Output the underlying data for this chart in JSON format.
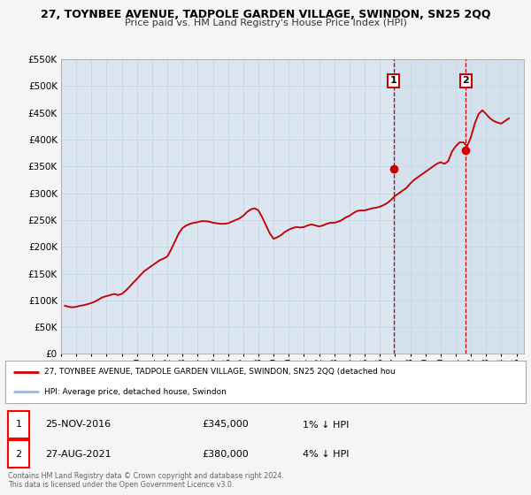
{
  "title": "27, TOYNBEE AVENUE, TADPOLE GARDEN VILLAGE, SWINDON, SN25 2QQ",
  "subtitle": "Price paid vs. HM Land Registry's House Price Index (HPI)",
  "ylim": [
    0,
    550000
  ],
  "yticks": [
    0,
    50000,
    100000,
    150000,
    200000,
    250000,
    300000,
    350000,
    400000,
    450000,
    500000,
    550000
  ],
  "xlim_start": 1995.0,
  "xlim_end": 2025.5,
  "background_color": "#f5f5f5",
  "plot_bg_color": "#dce6f1",
  "grid_color": "#c8d8e8",
  "red_line_color": "#cc0000",
  "blue_line_color": "#99bbdd",
  "marker1_date": 2016.9,
  "marker1_value": 345000,
  "marker2_date": 2021.65,
  "marker2_value": 380000,
  "vline1_x": 2016.9,
  "vline2_x": 2021.65,
  "legend_label_red": "27, TOYNBEE AVENUE, TADPOLE GARDEN VILLAGE, SWINDON, SN25 2QQ (detached hou",
  "legend_label_blue": "HPI: Average price, detached house, Swindon",
  "table_row1": [
    "1",
    "25-NOV-2016",
    "£345,000",
    "1% ↓ HPI"
  ],
  "table_row2": [
    "2",
    "27-AUG-2021",
    "£380,000",
    "4% ↓ HPI"
  ],
  "footer1": "Contains HM Land Registry data © Crown copyright and database right 2024.",
  "footer2": "This data is licensed under the Open Government Licence v3.0.",
  "hpi_years": [
    1995.25,
    1995.5,
    1995.75,
    1996.0,
    1996.25,
    1996.5,
    1996.75,
    1997.0,
    1997.25,
    1997.5,
    1997.75,
    1998.0,
    1998.25,
    1998.5,
    1998.75,
    1999.0,
    1999.25,
    1999.5,
    1999.75,
    2000.0,
    2000.25,
    2000.5,
    2000.75,
    2001.0,
    2001.25,
    2001.5,
    2001.75,
    2002.0,
    2002.25,
    2002.5,
    2002.75,
    2003.0,
    2003.25,
    2003.5,
    2003.75,
    2004.0,
    2004.25,
    2004.5,
    2004.75,
    2005.0,
    2005.25,
    2005.5,
    2005.75,
    2006.0,
    2006.25,
    2006.5,
    2006.75,
    2007.0,
    2007.25,
    2007.5,
    2007.75,
    2008.0,
    2008.25,
    2008.5,
    2008.75,
    2009.0,
    2009.25,
    2009.5,
    2009.75,
    2010.0,
    2010.25,
    2010.5,
    2010.75,
    2011.0,
    2011.25,
    2011.5,
    2011.75,
    2012.0,
    2012.25,
    2012.5,
    2012.75,
    2013.0,
    2013.25,
    2013.5,
    2013.75,
    2014.0,
    2014.25,
    2014.5,
    2014.75,
    2015.0,
    2015.25,
    2015.5,
    2015.75,
    2016.0,
    2016.25,
    2016.5,
    2016.75,
    2017.0,
    2017.25,
    2017.5,
    2017.75,
    2018.0,
    2018.25,
    2018.5,
    2018.75,
    2019.0,
    2019.25,
    2019.5,
    2019.75,
    2020.0,
    2020.25,
    2020.5,
    2020.75,
    2021.0,
    2021.25,
    2021.5,
    2021.75,
    2022.0,
    2022.25,
    2022.5,
    2022.75,
    2023.0,
    2023.25,
    2023.5,
    2023.75,
    2024.0,
    2024.25,
    2024.5
  ],
  "hpi_values": [
    90000,
    88000,
    87000,
    88000,
    90000,
    91000,
    93000,
    95000,
    98000,
    102000,
    106000,
    108000,
    110000,
    112000,
    110000,
    112000,
    118000,
    125000,
    133000,
    140000,
    148000,
    155000,
    160000,
    165000,
    170000,
    175000,
    178000,
    182000,
    195000,
    210000,
    225000,
    235000,
    240000,
    243000,
    245000,
    246000,
    248000,
    248000,
    247000,
    245000,
    244000,
    243000,
    243000,
    244000,
    247000,
    250000,
    253000,
    258000,
    265000,
    270000,
    272000,
    268000,
    255000,
    240000,
    225000,
    215000,
    218000,
    222000,
    228000,
    232000,
    235000,
    237000,
    236000,
    237000,
    240000,
    242000,
    240000,
    238000,
    240000,
    243000,
    245000,
    245000,
    247000,
    250000,
    255000,
    258000,
    263000,
    267000,
    268000,
    268000,
    270000,
    272000,
    273000,
    275000,
    278000,
    282000,
    288000,
    295000,
    300000,
    305000,
    310000,
    318000,
    325000,
    330000,
    335000,
    340000,
    345000,
    350000,
    355000,
    358000,
    355000,
    360000,
    378000,
    388000,
    395000,
    395000,
    388000,
    405000,
    430000,
    448000,
    455000,
    448000,
    440000,
    435000,
    432000,
    430000,
    435000,
    440000
  ],
  "red_values": [
    90000,
    88000,
    87000,
    88000,
    90000,
    91000,
    93000,
    95000,
    98000,
    102000,
    106000,
    108000,
    110000,
    112000,
    110000,
    112000,
    118000,
    125000,
    133000,
    140000,
    148000,
    155000,
    160000,
    165000,
    170000,
    175000,
    178000,
    182000,
    195000,
    210000,
    225000,
    235000,
    240000,
    243000,
    245000,
    246000,
    248000,
    248000,
    247000,
    245000,
    244000,
    243000,
    243000,
    244000,
    247000,
    250000,
    253000,
    258000,
    265000,
    270000,
    272000,
    268000,
    255000,
    240000,
    225000,
    215000,
    218000,
    222000,
    228000,
    232000,
    235000,
    237000,
    236000,
    237000,
    240000,
    242000,
    240000,
    238000,
    240000,
    243000,
    245000,
    245000,
    247000,
    250000,
    255000,
    258000,
    263000,
    267000,
    268000,
    268000,
    270000,
    272000,
    273000,
    275000,
    278000,
    282000,
    288000,
    295000,
    300000,
    305000,
    310000,
    318000,
    325000,
    330000,
    335000,
    340000,
    345000,
    350000,
    355000,
    358000,
    355000,
    360000,
    378000,
    388000,
    395000,
    395000,
    388000,
    405000,
    430000,
    448000,
    455000,
    448000,
    440000,
    435000,
    432000,
    430000,
    435000,
    440000
  ]
}
